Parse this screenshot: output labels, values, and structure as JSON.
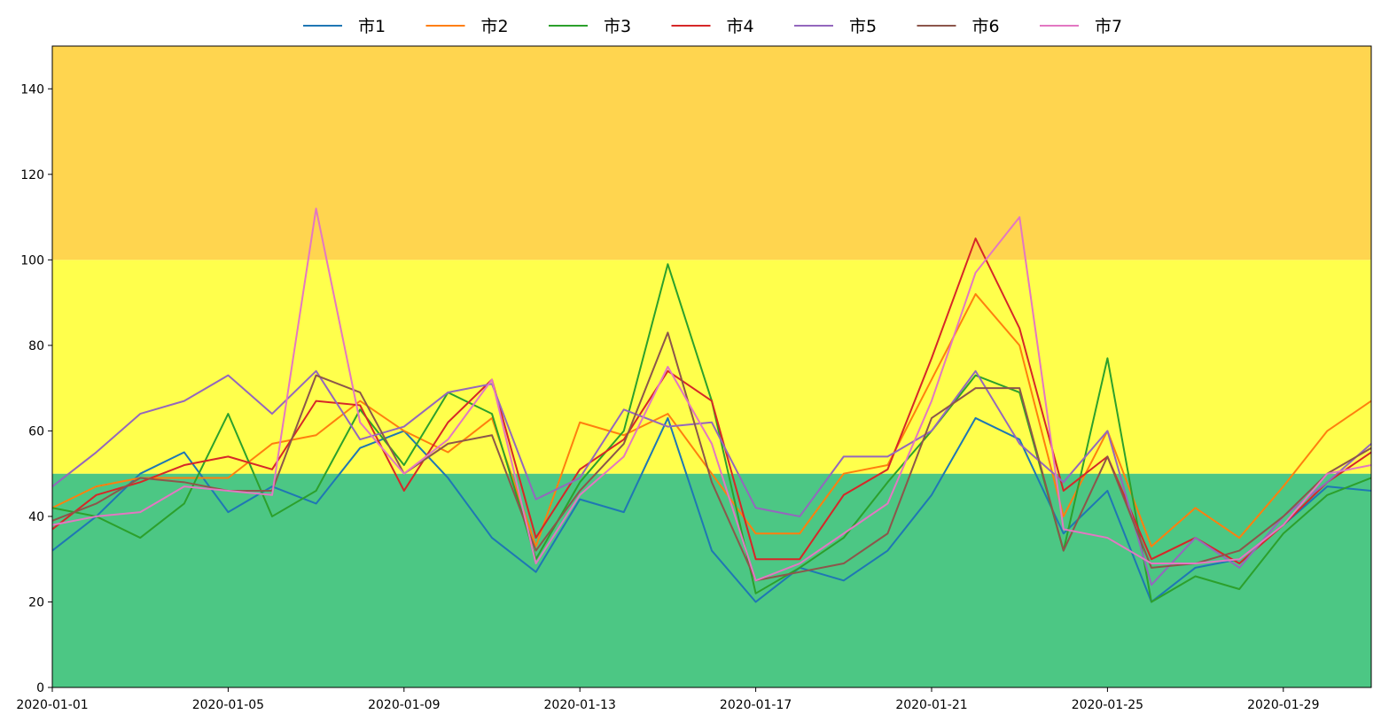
{
  "chart_data": {
    "type": "line",
    "title": "",
    "xlabel": "",
    "ylabel": "",
    "ylim": [
      0,
      150
    ],
    "y_ticks": [
      0,
      20,
      40,
      60,
      80,
      100,
      120,
      140
    ],
    "x": [
      "2020-01-01",
      "2020-01-02",
      "2020-01-03",
      "2020-01-04",
      "2020-01-05",
      "2020-01-06",
      "2020-01-07",
      "2020-01-08",
      "2020-01-09",
      "2020-01-10",
      "2020-01-11",
      "2020-01-12",
      "2020-01-13",
      "2020-01-14",
      "2020-01-15",
      "2020-01-16",
      "2020-01-17",
      "2020-01-18",
      "2020-01-19",
      "2020-01-20",
      "2020-01-21",
      "2020-01-22",
      "2020-01-23",
      "2020-01-24",
      "2020-01-25",
      "2020-01-26",
      "2020-01-27",
      "2020-01-28",
      "2020-01-29",
      "2020-01-30",
      "2020-01-31"
    ],
    "x_tick_labels": [
      "2020-01-01",
      "2020-01-05",
      "2020-01-09",
      "2020-01-13",
      "2020-01-17",
      "2020-01-21",
      "2020-01-25",
      "2020-01-29"
    ],
    "grid": false,
    "legend_position": "top-center",
    "bands": [
      {
        "from": 0,
        "to": 50,
        "color": "#4CC784"
      },
      {
        "from": 50,
        "to": 100,
        "color": "#FFFF4C"
      },
      {
        "from": 100,
        "to": 150,
        "color": "#FFD54F"
      }
    ],
    "series": [
      {
        "name": "市1",
        "color": "#1f77b4",
        "values": [
          32,
          40,
          50,
          55,
          41,
          47,
          43,
          56,
          60,
          49,
          35,
          27,
          44,
          41,
          63,
          32,
          20,
          28,
          25,
          32,
          45,
          63,
          58,
          36,
          46,
          20,
          28,
          30,
          38,
          47,
          46
        ]
      },
      {
        "name": "市2",
        "color": "#ff7f0e",
        "values": [
          42,
          47,
          49,
          49,
          49,
          57,
          59,
          67,
          60,
          55,
          63,
          33,
          62,
          59,
          64,
          50,
          36,
          36,
          50,
          52,
          72,
          92,
          80,
          40,
          60,
          33,
          42,
          35,
          47,
          60,
          67
        ]
      },
      {
        "name": "市3",
        "color": "#2ca02c",
        "values": [
          42,
          40,
          35,
          43,
          64,
          40,
          46,
          65,
          52,
          69,
          64,
          30,
          48,
          60,
          99,
          67,
          22,
          28,
          35,
          48,
          60,
          73,
          69,
          32,
          77,
          20,
          26,
          23,
          36,
          45,
          49
        ]
      },
      {
        "name": "市4",
        "color": "#d62728",
        "values": [
          37,
          45,
          48,
          52,
          54,
          51,
          67,
          66,
          46,
          62,
          72,
          35,
          51,
          58,
          74,
          67,
          30,
          30,
          45,
          51,
          77,
          105,
          84,
          46,
          54,
          30,
          35,
          29,
          38,
          48,
          55
        ]
      },
      {
        "name": "市5",
        "color": "#9467bd",
        "values": [
          47,
          55,
          64,
          67,
          73,
          64,
          74,
          58,
          61,
          69,
          71,
          44,
          49,
          65,
          61,
          62,
          42,
          40,
          54,
          54,
          60,
          74,
          57,
          48,
          60,
          24,
          35,
          28,
          40,
          48,
          57
        ]
      },
      {
        "name": "市6",
        "color": "#8c564b",
        "values": [
          39,
          43,
          49,
          48,
          46,
          46,
          73,
          69,
          50,
          57,
          59,
          32,
          46,
          57,
          83,
          48,
          25,
          27,
          29,
          36,
          63,
          70,
          70,
          32,
          54,
          28,
          29,
          32,
          40,
          50,
          56
        ]
      },
      {
        "name": "市7",
        "color": "#e377c2",
        "values": [
          38,
          40,
          41,
          47,
          46,
          45,
          112,
          62,
          50,
          58,
          72,
          29,
          45,
          54,
          75,
          57,
          25,
          29,
          36,
          43,
          67,
          97,
          110,
          37,
          35,
          29,
          29,
          30,
          38,
          50,
          52
        ]
      }
    ]
  }
}
